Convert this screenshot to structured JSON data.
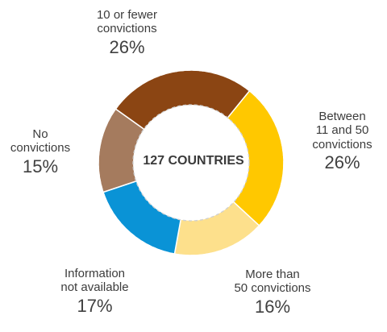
{
  "chart_data": {
    "type": "pie",
    "title": "",
    "center_label": "127 COUNTRIES",
    "slices": [
      {
        "label": "10 or fewer\nconvictions",
        "value": 26,
        "display": "26%",
        "color": "#8B4513"
      },
      {
        "label": "Between\n11 and 50\nconvictions",
        "value": 26,
        "display": "26%",
        "color": "#FFC800"
      },
      {
        "label": "More than\n50 convictions",
        "value": 16,
        "display": "16%",
        "color": "#FDE08C"
      },
      {
        "label": "Information\nnot available",
        "value": 17,
        "display": "17%",
        "color": "#0A93D6"
      },
      {
        "label": "No\nconvictions",
        "value": 15,
        "display": "15%",
        "color": "#A57B5E"
      }
    ]
  }
}
